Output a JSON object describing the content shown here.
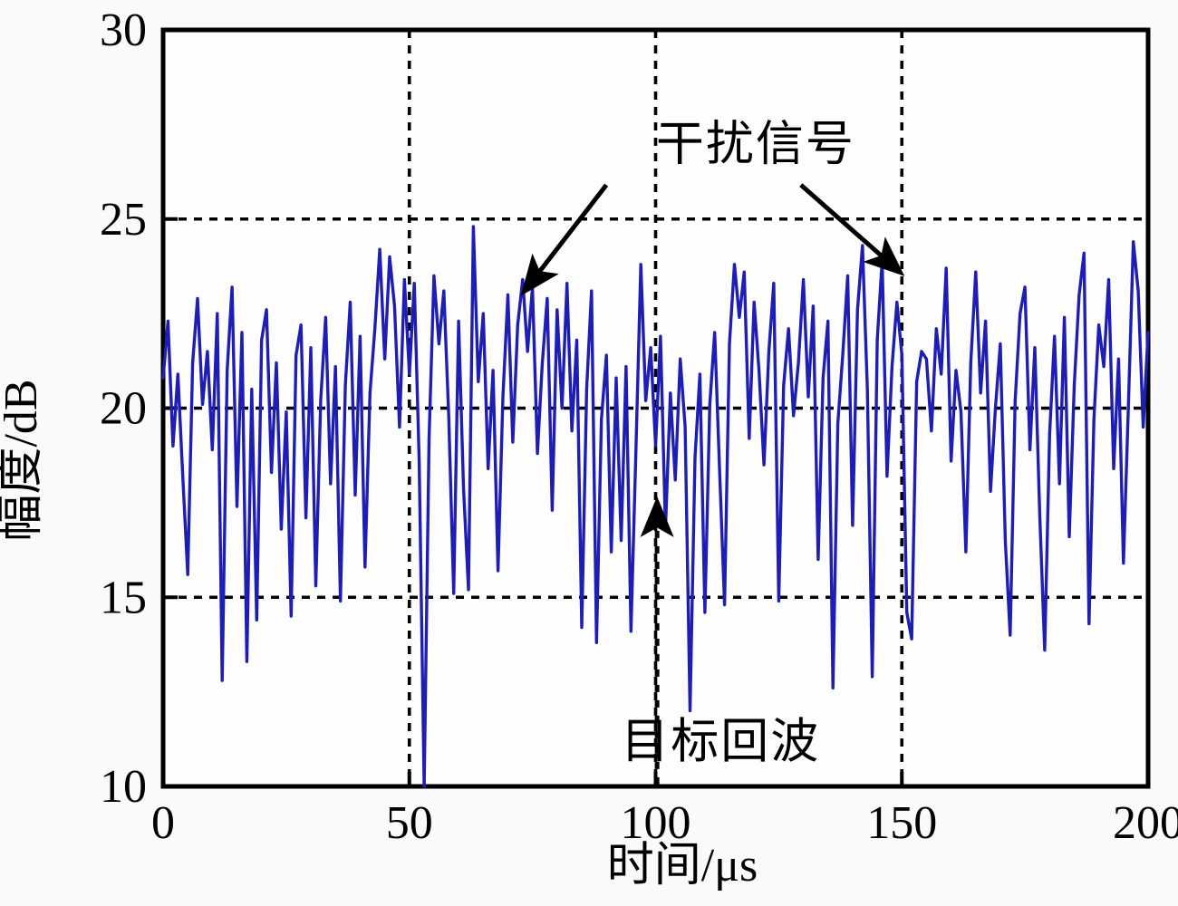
{
  "page": {
    "background": "#fafafc"
  },
  "chart_data": {
    "type": "line",
    "title": "",
    "xlabel": "时间/μs",
    "ylabel": "幅度/dB",
    "xlim": [
      0,
      200
    ],
    "ylim": [
      10,
      30
    ],
    "xticks": [
      0,
      50,
      100,
      150,
      200
    ],
    "yticks": [
      30,
      25,
      20,
      15,
      10
    ],
    "xgrid_at": [
      50,
      100,
      150
    ],
    "ygrid_at": [
      25,
      20,
      15
    ],
    "grid_style": "dotted",
    "legend": "none",
    "line_color": "#1e1eb4",
    "series": [
      {
        "name": "radar-return-signal",
        "x_start": 0,
        "x_step": 1,
        "values": [
          20.8,
          22.3,
          19.0,
          20.9,
          18.2,
          15.6,
          21.2,
          22.9,
          20.1,
          21.5,
          18.9,
          22.5,
          12.8,
          21.0,
          23.2,
          17.4,
          22.0,
          13.3,
          20.5,
          14.4,
          21.8,
          22.6,
          18.3,
          21.2,
          16.8,
          19.9,
          14.5,
          21.4,
          22.2,
          17.1,
          21.6,
          15.3,
          20.2,
          22.4,
          18.0,
          21.1,
          14.9,
          20.6,
          22.8,
          17.7,
          21.9,
          15.8,
          20.4,
          22.1,
          24.2,
          21.3,
          24.0,
          22.7,
          19.5,
          23.4,
          20.9,
          23.3,
          18.6,
          10.0,
          19.2,
          23.5,
          21.7,
          23.1,
          19.8,
          15.1,
          22.3,
          17.9,
          15.2,
          24.8,
          20.7,
          22.5,
          18.4,
          21.0,
          15.7,
          20.3,
          23.0,
          19.1,
          22.2,
          23.4,
          21.5,
          23.2,
          18.8,
          21.2,
          22.9,
          17.3,
          22.6,
          20.0,
          23.3,
          19.4,
          21.8,
          14.2,
          20.5,
          23.1,
          13.8,
          19.7,
          21.4,
          16.2,
          20.8,
          16.5,
          21.1,
          14.1,
          18.9,
          23.8,
          20.2,
          21.6,
          19.0,
          21.9,
          16.8,
          20.4,
          18.1,
          21.3,
          19.5,
          12.0,
          18.7,
          20.9,
          14.6,
          20.1,
          22.0,
          18.3,
          14.8,
          21.7,
          23.8,
          22.4,
          23.6,
          19.2,
          22.8,
          21.0,
          18.5,
          21.5,
          23.3,
          14.9,
          20.6,
          22.1,
          19.8,
          21.2,
          23.4,
          20.3,
          22.7,
          16.0,
          20.8,
          22.3,
          12.6,
          19.6,
          21.4,
          23.5,
          16.9,
          22.6,
          24.3,
          20.5,
          12.9,
          21.8,
          23.9,
          18.2,
          21.1,
          22.8,
          21.4,
          14.6,
          13.9,
          20.7,
          21.5,
          21.3,
          19.4,
          22.1,
          20.9,
          23.7,
          18.6,
          21.0,
          19.9,
          16.2,
          21.2,
          23.6,
          20.4,
          22.3,
          17.8,
          20.0,
          21.7,
          16.5,
          14.0,
          20.2,
          22.5,
          23.2,
          18.9,
          21.6,
          17.2,
          13.6,
          19.3,
          21.9,
          18.0,
          22.4,
          16.6,
          20.6,
          23.0,
          24.1,
          14.3,
          19.7,
          22.2,
          21.1,
          23.4,
          18.4,
          21.3,
          15.9,
          20.1,
          24.4,
          23.1,
          19.5,
          22.0
        ]
      }
    ],
    "annotations": [
      {
        "id": "interference-signal",
        "text": "干扰信号",
        "label_pos": {
          "x": 120.3,
          "y": 27.0
        },
        "arrows": [
          {
            "from": {
              "x": 90.0,
              "y": 25.9
            },
            "to": {
              "x": 73.4,
              "y": 23.1
            },
            "style": "solid"
          },
          {
            "from": {
              "x": 129.5,
              "y": 25.9
            },
            "to": {
              "x": 149.6,
              "y": 23.6
            },
            "style": "solid"
          }
        ]
      },
      {
        "id": "target-echo",
        "text": "目标回波",
        "label_pos": {
          "x": 113.2,
          "y": 11.2
        },
        "arrows": [
          {
            "from": {
              "x": 100.3,
              "y": 10.05
            },
            "to": {
              "x": 100.3,
              "y": 17.5
            },
            "style": "dashed"
          }
        ]
      }
    ]
  }
}
